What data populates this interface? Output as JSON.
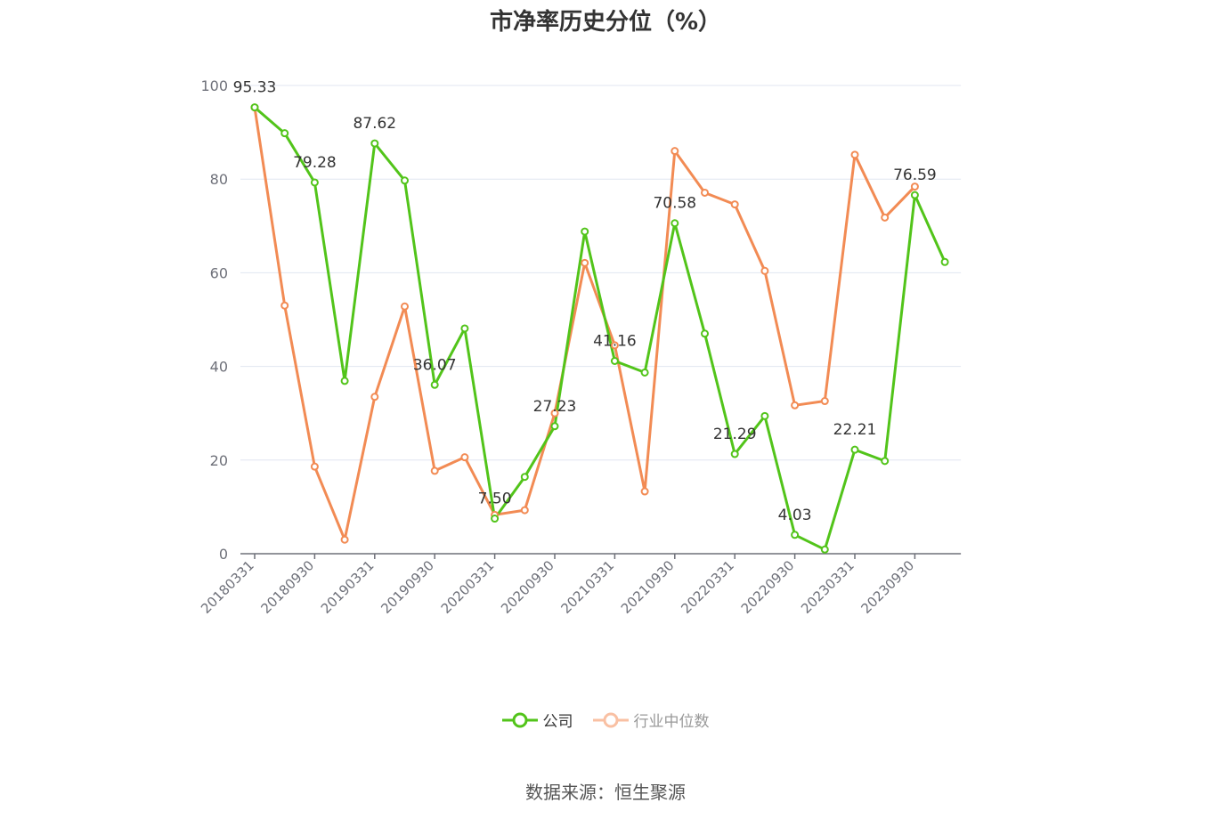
{
  "title": "市净率历史分位（%）",
  "source": "数据来源：恒生聚源",
  "legend": [
    {
      "name": "公司",
      "color": "#52c41a",
      "active": true
    },
    {
      "name": "行业中位数",
      "color": "#f28b54",
      "active": false
    }
  ],
  "chart_data": {
    "type": "line",
    "title": "市净率历史分位（%）",
    "ylim": [
      0,
      100
    ],
    "yticks": [
      0,
      20,
      40,
      60,
      80,
      100
    ],
    "grid": true,
    "legend_position": "bottom",
    "x": [
      "20180331",
      "20180630",
      "20180930",
      "20181231",
      "20190331",
      "20190630",
      "20190930",
      "20191231",
      "20200331",
      "20200630",
      "20200930",
      "20201231",
      "20210331",
      "20210630",
      "20210930",
      "20211231",
      "20220331",
      "20220630",
      "20220930",
      "20221231",
      "20230331",
      "20230630",
      "20230930",
      "20231231"
    ],
    "xtick_labels": [
      "20180331",
      "20180930",
      "20190331",
      "20190930",
      "20200331",
      "20200930",
      "20210331",
      "20210930",
      "20220331",
      "20220930",
      "20230331",
      "20230930"
    ],
    "series": [
      {
        "name": "公司",
        "color": "#52c41a",
        "values": [
          95.33,
          89.8,
          79.28,
          36.9,
          87.62,
          79.7,
          36.07,
          48.1,
          7.5,
          16.4,
          27.23,
          68.8,
          41.16,
          38.7,
          70.58,
          47.0,
          21.29,
          29.4,
          4.03,
          0.9,
          22.21,
          19.8,
          76.59,
          62.3
        ],
        "labels": {
          "0": "95.33",
          "2": "79.28",
          "4": "87.62",
          "6": "36.07",
          "8": "7.50",
          "10": "27.23",
          "12": "41.16",
          "14": "70.58",
          "16": "21.29",
          "18": "4.03",
          "20": "22.21",
          "22": "76.59"
        }
      },
      {
        "name": "行业中位数",
        "color": "#f28b54",
        "values": [
          95.3,
          53.0,
          18.6,
          3.0,
          33.5,
          52.8,
          17.7,
          20.6,
          8.3,
          9.3,
          30.0,
          62.1,
          44.5,
          13.3,
          86.0,
          77.1,
          74.6,
          60.4,
          31.7,
          32.6,
          85.2,
          71.8,
          78.4,
          null
        ]
      }
    ]
  }
}
